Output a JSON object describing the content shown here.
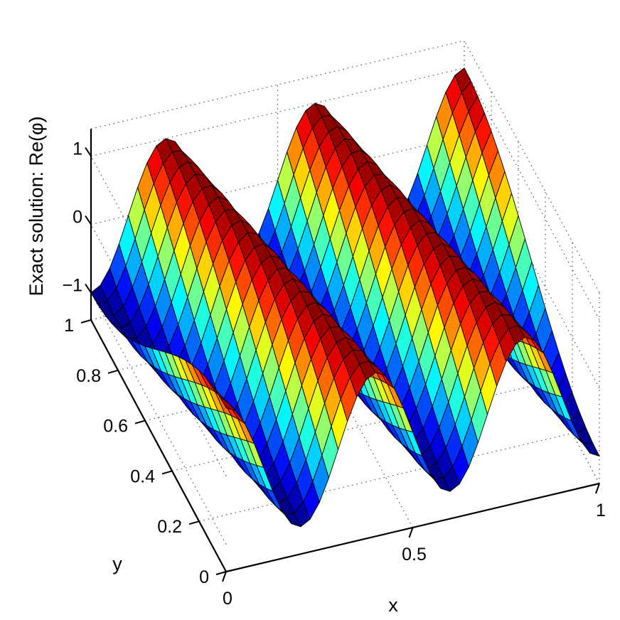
{
  "chart_data": {
    "type": "surface",
    "title": "",
    "xlabel": "x",
    "ylabel": "y",
    "zlabel": "Exact solution: Re(φ)",
    "xlim": [
      0,
      1
    ],
    "ylim": [
      0,
      1
    ],
    "zlim": [
      -1.4,
      1.4
    ],
    "x_ticks": [
      0,
      0.5,
      1
    ],
    "x_tick_labels": [
      "0",
      "0.5",
      "1"
    ],
    "y_ticks": [
      0,
      0.2,
      0.4,
      0.6,
      0.8,
      1
    ],
    "y_tick_labels": [
      "0",
      "0.2",
      "0.4",
      "0.6",
      "0.8",
      "1"
    ],
    "z_ticks": [
      1,
      0,
      -1
    ],
    "z_tick_labels": [
      "1",
      "0",
      "−1"
    ],
    "grid": true,
    "colormap": "jet",
    "edge_color": "#000000",
    "mesh": {
      "nx": 41,
      "ny": 21
    },
    "surface_function": "Re(phi) = cos(2*pi*(2.5*x + 0.5*y))",
    "wave": {
      "kx_cycles": 2.5,
      "ky_cycles": 0.5,
      "amplitude": 1
    }
  }
}
